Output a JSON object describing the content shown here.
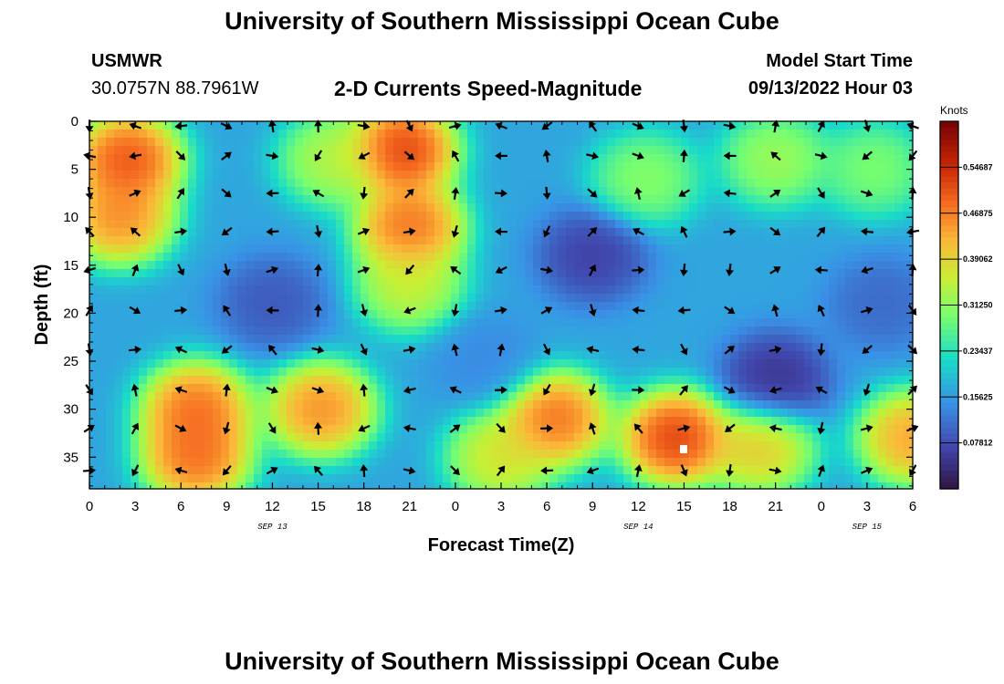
{
  "header": {
    "title": "University of Southern Mississippi Ocean Cube",
    "station": "USMWR",
    "coords": "30.0757N  88.7961W",
    "subtitle": "2-D Currents Speed-Magnitude",
    "model_label": "Model Start Time",
    "model_time": "09/13/2022 Hour 03"
  },
  "footer": {
    "title": "University of Southern Mississippi Ocean Cube"
  },
  "chart_data": {
    "type": "heatmap",
    "title": "2-D Currents Speed-Magnitude",
    "xlabel": "Forecast Time(Z)",
    "ylabel": "Depth (ft)",
    "x_hours": [
      0,
      3,
      6,
      9,
      12,
      15,
      18,
      21,
      24,
      27,
      30,
      33,
      36,
      39,
      42,
      45,
      48,
      51,
      54
    ],
    "x_tick_labels": [
      "0",
      "3",
      "6",
      "9",
      "12",
      "15",
      "18",
      "21",
      "0",
      "3",
      "6",
      "9",
      "12",
      "15",
      "18",
      "21",
      "0",
      "3",
      "6"
    ],
    "date_labels": [
      {
        "hour": 12,
        "label": "SEP 13"
      },
      {
        "hour": 36,
        "label": "SEP 14"
      },
      {
        "hour": 51,
        "label": "SEP 15"
      }
    ],
    "y_ticks": [
      0,
      5,
      10,
      15,
      20,
      25,
      30,
      35
    ],
    "y_tick_labels": [
      "0",
      "5",
      "10",
      "15",
      "20",
      "25",
      "30",
      "35"
    ],
    "ylim": [
      0,
      38.3
    ],
    "xlim": [
      0,
      54
    ],
    "colorbar": {
      "unit": "Knots",
      "min": 0.0,
      "max": 0.625,
      "labels": [
        "0.54687",
        "0.46875",
        "0.39062",
        "0.31250",
        "0.23437",
        "0.15625",
        "0.07812"
      ],
      "label_values": [
        0.54687,
        0.46875,
        0.39062,
        0.3125,
        0.23437,
        0.15625,
        0.07812
      ]
    },
    "speed_blobs_knots": [
      {
        "hour": 2.5,
        "depth": 4,
        "speed": 0.58
      },
      {
        "hour": 2.0,
        "depth": 10,
        "speed": 0.52
      },
      {
        "hour": 20.5,
        "depth": 3,
        "speed": 0.6
      },
      {
        "hour": 21.0,
        "depth": 11,
        "speed": 0.55
      },
      {
        "hour": 21.0,
        "depth": 17,
        "speed": 0.4
      },
      {
        "hour": 16.0,
        "depth": 4,
        "speed": 0.38
      },
      {
        "hour": 7.0,
        "depth": 30,
        "speed": 0.55
      },
      {
        "hour": 7.0,
        "depth": 35,
        "speed": 0.55
      },
      {
        "hour": 15.2,
        "depth": 30,
        "speed": 0.52
      },
      {
        "hour": 30.5,
        "depth": 31,
        "speed": 0.55
      },
      {
        "hour": 38.5,
        "depth": 33,
        "speed": 0.6
      },
      {
        "hour": 44.0,
        "depth": 34,
        "speed": 0.45
      },
      {
        "hour": 27.0,
        "depth": 35,
        "speed": 0.42
      },
      {
        "hour": 54.0,
        "depth": 33,
        "speed": 0.5
      },
      {
        "hour": 36.5,
        "depth": 6,
        "speed": 0.34
      },
      {
        "hour": 45.0,
        "depth": 4,
        "speed": 0.36
      },
      {
        "hour": 51.5,
        "depth": 5,
        "speed": 0.33
      },
      {
        "hour": 33.0,
        "depth": 14,
        "speed": 0.05
      },
      {
        "hour": 45.0,
        "depth": 27,
        "speed": 0.03
      },
      {
        "hour": 12.0,
        "depth": 19,
        "speed": 0.08
      },
      {
        "hour": 52.0,
        "depth": 19,
        "speed": 0.1
      },
      {
        "hour": 26.0,
        "depth": 25,
        "speed": 0.14
      }
    ]
  }
}
